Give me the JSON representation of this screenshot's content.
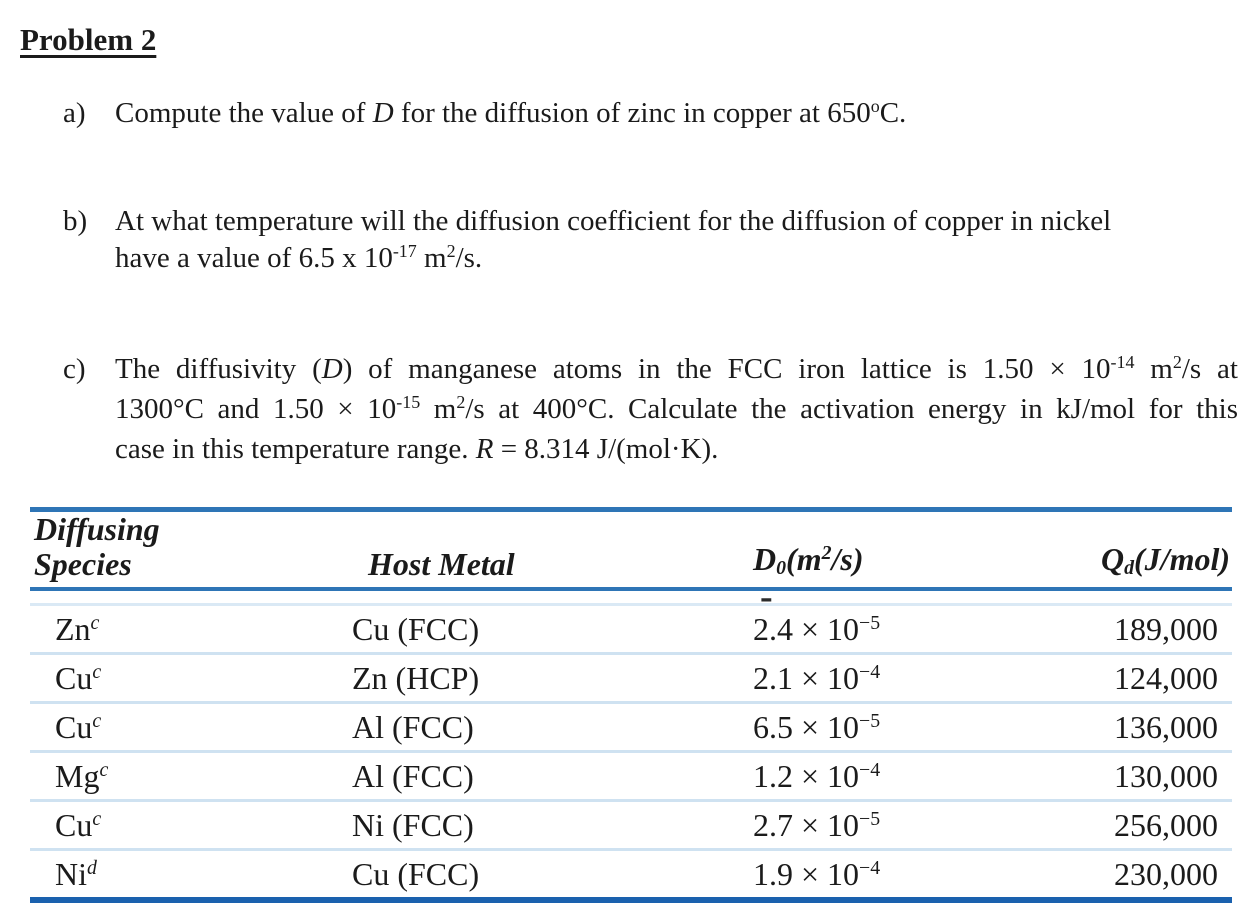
{
  "title": "Problem 2",
  "colors": {
    "accent": "#2E75B6",
    "rule_light": "#CFE2F1",
    "rule_lighter": "#DAE9F5",
    "bottom": "#1A61AE",
    "text": "#1B1B1B"
  },
  "problems": [
    {
      "label": "a)",
      "lines": [
        [
          [
            "n",
            "Compute the value of "
          ],
          [
            "i",
            "D"
          ],
          [
            "n",
            " for the diffusion of zinc in copper at 650"
          ],
          [
            "sup",
            "o"
          ],
          [
            "n",
            "C."
          ]
        ]
      ]
    },
    {
      "label": "b)",
      "lines": [
        [
          [
            "n",
            "At what temperature will the diffusion coefficient for the diffusion of copper in nickel"
          ]
        ],
        [
          [
            "n",
            "have a value of 6.5 x 10"
          ],
          [
            "sup",
            "-17"
          ],
          [
            "n",
            " m"
          ],
          [
            "sup",
            "2"
          ],
          [
            "n",
            "/s."
          ]
        ]
      ]
    },
    {
      "label": "c)",
      "lines": [
        [
          [
            "n",
            "The diffusivity ("
          ],
          [
            "i",
            "D"
          ],
          [
            "n",
            ") of manganese atoms in the FCC iron lattice is 1.50 × 10"
          ],
          [
            "sup",
            "-14"
          ],
          [
            "n",
            " m"
          ],
          [
            "sup",
            "2"
          ],
          [
            "n",
            "/s at"
          ]
        ],
        [
          [
            "n",
            "1300°C and 1.50 × 10"
          ],
          [
            "sup",
            "-15"
          ],
          [
            "n",
            " m"
          ],
          [
            "sup",
            "2"
          ],
          [
            "n",
            "/s at 400°C. Calculate the activation energy in kJ/mol for this"
          ]
        ],
        [
          [
            "n",
            "case in this temperature range. "
          ],
          [
            "i",
            "R"
          ],
          [
            "n",
            " = 8.314 J/(mol·K)."
          ]
        ]
      ]
    }
  ],
  "table": {
    "stray_mark": "-",
    "headers": {
      "col1_line1": [
        [
          "n",
          "Diffusing"
        ]
      ],
      "col1_line2": [
        [
          "n",
          "Species"
        ]
      ],
      "col2": [
        [
          "n",
          "Host Metal"
        ]
      ],
      "col3": [
        [
          "n",
          "D"
        ],
        [
          "sub",
          "0"
        ],
        [
          "n",
          "(m"
        ],
        [
          "sup",
          "2"
        ],
        [
          "n",
          "/s)"
        ]
      ],
      "col4": [
        [
          "n",
          "Q"
        ],
        [
          "sub",
          "d"
        ],
        [
          "n",
          "(J/mol)"
        ]
      ]
    },
    "rows": [
      {
        "species": [
          [
            "n",
            "Zn"
          ],
          [
            "isup",
            "c"
          ]
        ],
        "host": [
          [
            "n",
            "Cu (FCC)"
          ]
        ],
        "d0": [
          [
            "n",
            "2.4 × 10"
          ],
          [
            "sup",
            "−5"
          ]
        ],
        "qd": [
          [
            "n",
            "189,000"
          ]
        ]
      },
      {
        "species": [
          [
            "n",
            "Cu"
          ],
          [
            "isup",
            "c"
          ]
        ],
        "host": [
          [
            "n",
            "Zn (HCP)"
          ]
        ],
        "d0": [
          [
            "n",
            "2.1 × 10"
          ],
          [
            "sup",
            "−4"
          ]
        ],
        "qd": [
          [
            "n",
            "124,000"
          ]
        ]
      },
      {
        "species": [
          [
            "n",
            "Cu"
          ],
          [
            "isup",
            "c"
          ]
        ],
        "host": [
          [
            "n",
            "Al (FCC)"
          ]
        ],
        "d0": [
          [
            "n",
            "6.5 × 10"
          ],
          [
            "sup",
            "−5"
          ]
        ],
        "qd": [
          [
            "n",
            "136,000"
          ]
        ]
      },
      {
        "species": [
          [
            "n",
            "Mg"
          ],
          [
            "isup",
            "c"
          ]
        ],
        "host": [
          [
            "n",
            "Al (FCC)"
          ]
        ],
        "d0": [
          [
            "n",
            "1.2 × 10"
          ],
          [
            "sup",
            "−4"
          ]
        ],
        "qd": [
          [
            "n",
            "130,000"
          ]
        ]
      },
      {
        "species": [
          [
            "n",
            "Cu"
          ],
          [
            "isup",
            "c"
          ]
        ],
        "host": [
          [
            "n",
            "Ni (FCC)"
          ]
        ],
        "d0": [
          [
            "n",
            "2.7 × 10"
          ],
          [
            "sup",
            "−5"
          ]
        ],
        "qd": [
          [
            "n",
            "256,000"
          ]
        ]
      },
      {
        "species": [
          [
            "n",
            "Ni"
          ],
          [
            "isup",
            "d"
          ]
        ],
        "host": [
          [
            "n",
            "Cu (FCC)"
          ]
        ],
        "d0": [
          [
            "n",
            "1.9 × 10"
          ],
          [
            "sup",
            "−4"
          ]
        ],
        "qd": [
          [
            "n",
            "230,000"
          ]
        ]
      }
    ]
  }
}
